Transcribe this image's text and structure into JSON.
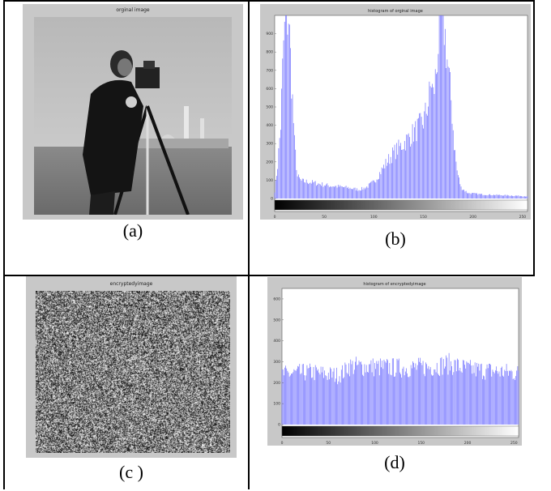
{
  "captions": {
    "a": "(a)",
    "b": "(b)",
    "c": "(c )",
    "d": "(d)"
  },
  "panels": {
    "a": {
      "title": "orginal image"
    },
    "c": {
      "title": "encryptedyimage"
    }
  },
  "chart_data": [
    {
      "id": "b",
      "type": "bar",
      "title": "histogram of orginal image",
      "xlabel": "",
      "ylabel": "",
      "xlim": [
        0,
        255
      ],
      "ylim": [
        0,
        1000
      ],
      "xticks": [
        0,
        50,
        100,
        150,
        200,
        250
      ],
      "yticks": [
        0,
        100,
        200,
        300,
        400,
        500,
        600,
        700,
        800,
        900
      ],
      "colorbar": "gray",
      "series_color": "#6f6fff",
      "anchors": [
        [
          0,
          40
        ],
        [
          3,
          180
        ],
        [
          6,
          400
        ],
        [
          9,
          850
        ],
        [
          11,
          960
        ],
        [
          14,
          1000
        ],
        [
          17,
          650
        ],
        [
          20,
          300
        ],
        [
          23,
          120
        ],
        [
          27,
          95
        ],
        [
          35,
          90
        ],
        [
          45,
          80
        ],
        [
          55,
          70
        ],
        [
          65,
          65
        ],
        [
          75,
          58
        ],
        [
          85,
          48
        ],
        [
          92,
          60
        ],
        [
          100,
          90
        ],
        [
          105,
          130
        ],
        [
          112,
          190
        ],
        [
          120,
          250
        ],
        [
          128,
          290
        ],
        [
          135,
          330
        ],
        [
          142,
          370
        ],
        [
          150,
          420
        ],
        [
          155,
          520
        ],
        [
          158,
          640
        ],
        [
          160,
          560
        ],
        [
          163,
          700
        ],
        [
          166,
          920
        ],
        [
          168,
          1000
        ],
        [
          171,
          940
        ],
        [
          174,
          760
        ],
        [
          178,
          540
        ],
        [
          181,
          300
        ],
        [
          184,
          150
        ],
        [
          188,
          60
        ],
        [
          195,
          30
        ],
        [
          210,
          22
        ],
        [
          230,
          18
        ],
        [
          245,
          15
        ],
        [
          255,
          12
        ]
      ]
    },
    {
      "id": "d",
      "type": "bar",
      "title": "histogram of encryptedyimage",
      "xlabel": "",
      "ylabel": "",
      "xlim": [
        0,
        255
      ],
      "ylim": [
        0,
        650
      ],
      "xticks": [
        0,
        50,
        100,
        150,
        200,
        250
      ],
      "yticks": [
        0,
        100,
        200,
        300,
        400,
        500,
        600
      ],
      "colorbar": "gray",
      "series_color": "#6f6fff",
      "anchors": [
        [
          0,
          240
        ],
        [
          30,
          250
        ],
        [
          60,
          235
        ],
        [
          68,
          255
        ],
        [
          70,
          280
        ],
        [
          100,
          275
        ],
        [
          130,
          270
        ],
        [
          160,
          275
        ],
        [
          180,
          290
        ],
        [
          200,
          265
        ],
        [
          230,
          255
        ],
        [
          255,
          245
        ]
      ]
    }
  ]
}
